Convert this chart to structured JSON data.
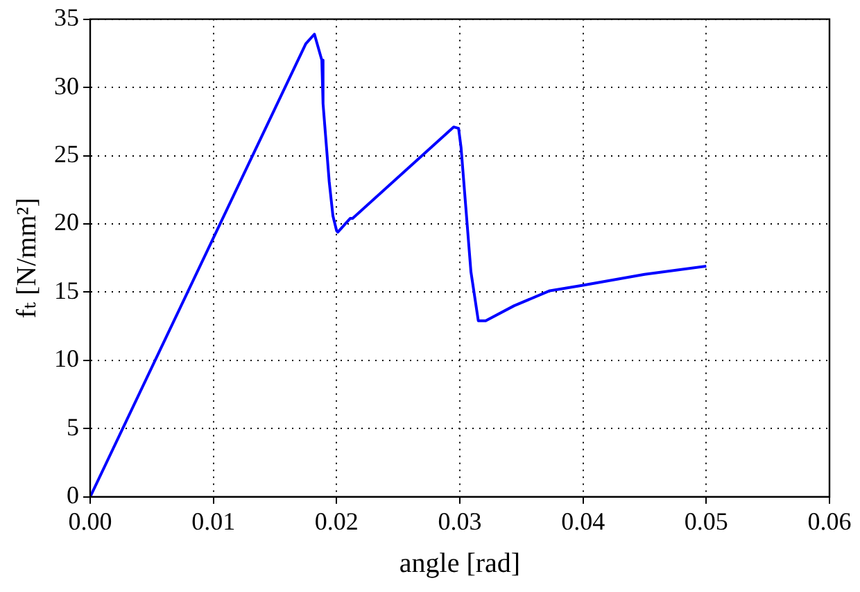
{
  "chart_data": {
    "type": "line",
    "xlabel": "angle [rad]",
    "ylabel": "fₜ [N/mm²]",
    "x": [
      0,
      0.0175,
      0.0182,
      0.0188,
      0.0189,
      0.0194,
      0.0197,
      0.02,
      0.0201,
      0.0211,
      0.0213,
      0.0295,
      0.0299,
      0.0301,
      0.0309,
      0.0315,
      0.0321,
      0.0344,
      0.0373,
      0.04,
      0.045,
      0.05
    ],
    "series": [
      {
        "color": "#0000ff",
        "values": [
          0,
          33.2,
          33.9,
          32.0,
          28.8,
          23.1,
          20.6,
          19.5,
          19.4,
          20.4,
          20.4,
          27.1,
          27.0,
          25.6,
          16.5,
          12.9,
          12.9,
          14.0,
          15.1,
          15.5,
          16.3,
          16.9
        ]
      }
    ],
    "xlim": [
      0,
      0.06
    ],
    "xticks": [
      {
        "value": 0,
        "label": "0.00"
      },
      0.01,
      0.02,
      0.03,
      0.04,
      0.05,
      0.06
    ],
    "ylim": [
      0,
      35
    ],
    "yticks": [
      0,
      5,
      10,
      15,
      20,
      25,
      30,
      35
    ],
    "grid": true,
    "legend": false,
    "marker": "none",
    "line_style": "solid"
  }
}
